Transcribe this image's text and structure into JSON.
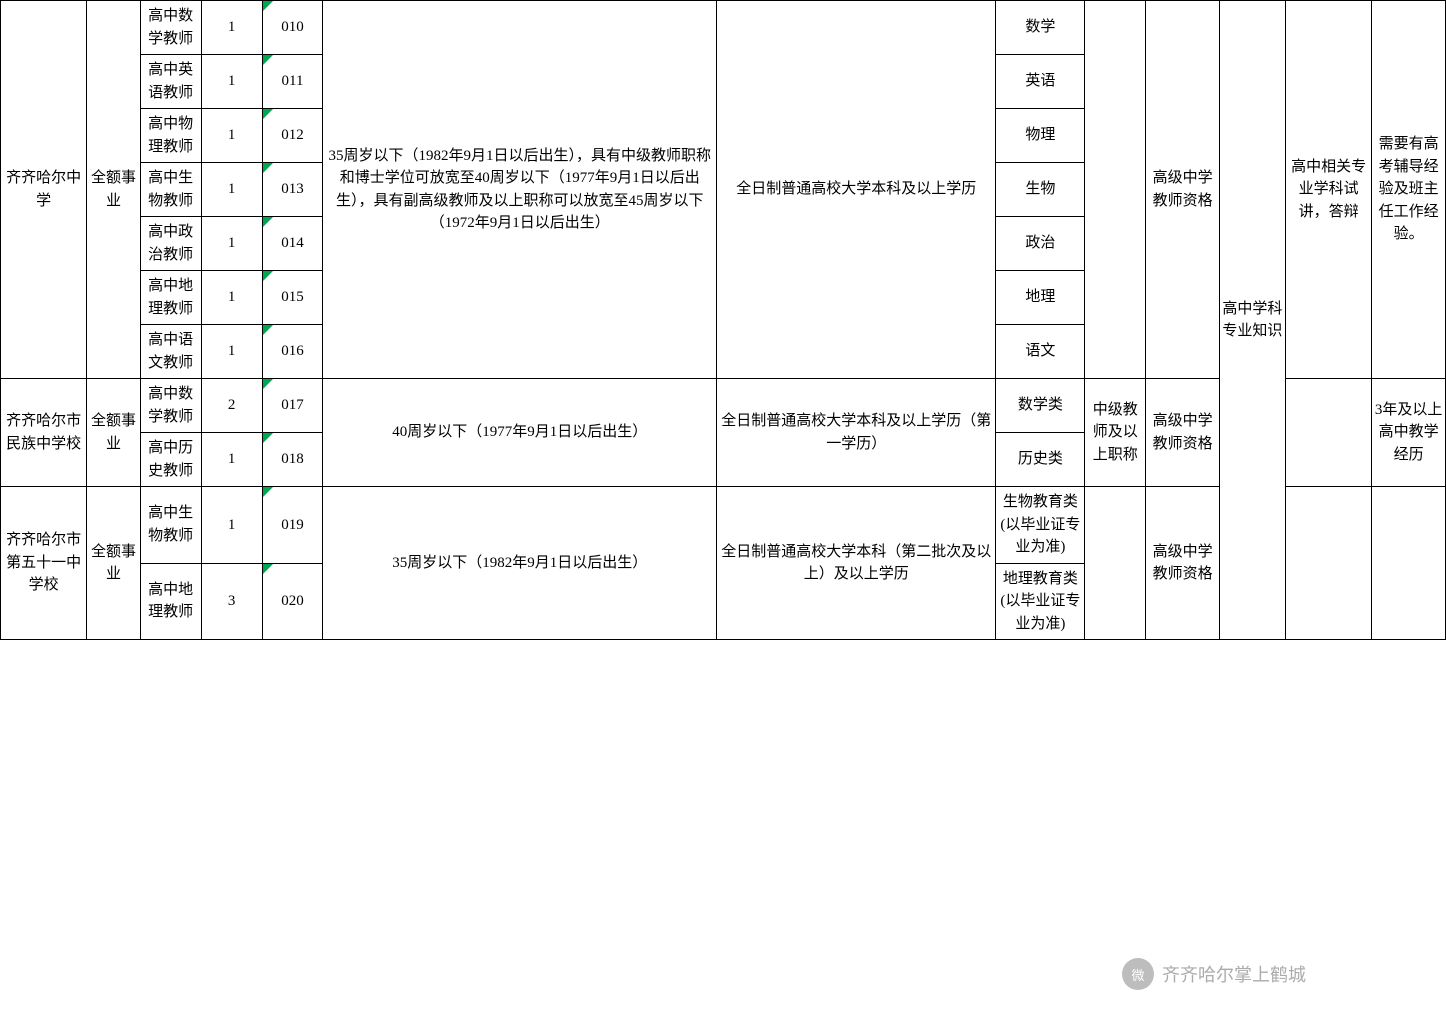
{
  "table": {
    "border_color": "#000000",
    "background_color": "#ffffff",
    "marker_color": "#00a651",
    "font_size": 15,
    "schools": [
      {
        "name": "齐齐哈尔中学",
        "type": "全额事业",
        "age_req": "35周岁以下（1982年9月1日以后出生），具有中级教师职称和博士学位可放宽至40周岁以下（1977年9月1日以后出生），具有副高级教师及以上职称可以放宽至45周岁以下（1972年9月1日以后出生）",
        "edu_req": "全日制普通高校大学本科及以上学历",
        "cert": "高级中学教师资格",
        "interview": "高中相关专业学科试讲，答辩",
        "other": "需要有高考辅导经验及班主任工作经验。",
        "rows": [
          {
            "position": "高中数学教师",
            "count": "1",
            "code": "010",
            "subject": "数学"
          },
          {
            "position": "高中英语教师",
            "count": "1",
            "code": "011",
            "subject": "英语"
          },
          {
            "position": "高中物理教师",
            "count": "1",
            "code": "012",
            "subject": "物理"
          },
          {
            "position": "高中生物教师",
            "count": "1",
            "code": "013",
            "subject": "生物"
          },
          {
            "position": "高中政治教师",
            "count": "1",
            "code": "014",
            "subject": "政治"
          },
          {
            "position": "高中地理教师",
            "count": "1",
            "code": "015",
            "subject": "地理"
          },
          {
            "position": "高中语文教师",
            "count": "1",
            "code": "016",
            "subject": "语文"
          }
        ]
      },
      {
        "name": "齐齐哈尔市民族中学校",
        "type": "全额事业",
        "age_req": "40周岁以下（1977年9月1日以后出生）",
        "edu_req": "全日制普通高校大学本科及以上学历（第一学历）",
        "title": "中级教师及以上职称",
        "cert": "高级中学教师资格",
        "other": "3年及以上高中教学经历",
        "rows": [
          {
            "position": "高中数学教师",
            "count": "2",
            "code": "017",
            "subject": "数学类"
          },
          {
            "position": "高中历史教师",
            "count": "1",
            "code": "018",
            "subject": "历史类"
          }
        ]
      },
      {
        "name": "齐齐哈尔市第五十一中学校",
        "type": "全额事业",
        "age_req": "35周岁以下（1982年9月1日以后出生）",
        "edu_req": "全日制普通高校大学本科（第二批次及以上）及以上学历",
        "cert": "高级中学教师资格",
        "rows": [
          {
            "position": "高中生物教师",
            "count": "1",
            "code": "019",
            "subject": "生物教育类(以毕业证专业为准)"
          },
          {
            "position": "高中地理教师",
            "count": "3",
            "code": "020",
            "subject": "地理教育类(以毕业证专业为准)"
          }
        ]
      }
    ],
    "exam_subject": "高中学科专业知识"
  },
  "watermark": {
    "text": "齐齐哈尔掌上鹤城",
    "icon": "微"
  }
}
